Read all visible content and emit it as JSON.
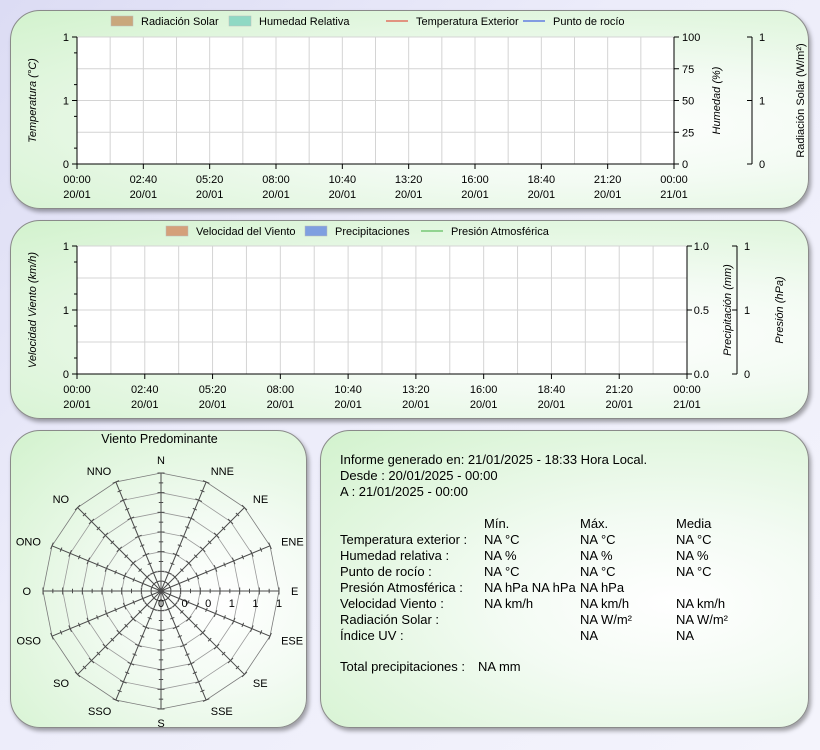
{
  "chart_data": [
    {
      "type": "line",
      "legend": [
        {
          "name": "Radiación Solar",
          "kind": "area",
          "color": "#c9a77c"
        },
        {
          "name": "Humedad Relativa",
          "kind": "area",
          "color": "#8fd9c4"
        },
        {
          "name": "Temperatura Exterior",
          "kind": "line",
          "color": "#e03020"
        },
        {
          "name": "Punto de rocío",
          "kind": "line",
          "color": "#2040e0"
        }
      ],
      "x_ticks": [
        {
          "time": "00:00",
          "date": "20/01"
        },
        {
          "time": "02:40",
          "date": "20/01"
        },
        {
          "time": "05:20",
          "date": "20/01"
        },
        {
          "time": "08:00",
          "date": "20/01"
        },
        {
          "time": "10:40",
          "date": "20/01"
        },
        {
          "time": "13:20",
          "date": "20/01"
        },
        {
          "time": "16:00",
          "date": "20/01"
        },
        {
          "time": "18:40",
          "date": "20/01"
        },
        {
          "time": "21:20",
          "date": "20/01"
        },
        {
          "time": "00:00",
          "date": "21/01"
        }
      ],
      "y_left": {
        "label": "Temperatura (°C)",
        "ticks": [
          "0",
          "1",
          "1"
        ]
      },
      "y_right": {
        "label": "Humedad (%)",
        "ticks": [
          "0",
          "25",
          "50",
          "75",
          "100"
        ]
      },
      "y_right2": {
        "label": "Radiación Solar (W/m²)",
        "ticks": [
          "0",
          "1",
          "1"
        ]
      },
      "grid": true,
      "series": []
    },
    {
      "type": "line",
      "legend": [
        {
          "name": "Velocidad del Viento",
          "kind": "area",
          "color": "#d4a07a"
        },
        {
          "name": "Precipitaciones",
          "kind": "area",
          "color": "#7f9fe0"
        },
        {
          "name": "Presión Atmosférica",
          "kind": "line",
          "color": "#40b040"
        }
      ],
      "x_ticks": [
        {
          "time": "00:00",
          "date": "20/01"
        },
        {
          "time": "02:40",
          "date": "20/01"
        },
        {
          "time": "05:20",
          "date": "20/01"
        },
        {
          "time": "08:00",
          "date": "20/01"
        },
        {
          "time": "10:40",
          "date": "20/01"
        },
        {
          "time": "13:20",
          "date": "20/01"
        },
        {
          "time": "16:00",
          "date": "20/01"
        },
        {
          "time": "18:40",
          "date": "20/01"
        },
        {
          "time": "21:20",
          "date": "20/01"
        },
        {
          "time": "00:00",
          "date": "21/01"
        }
      ],
      "y_left": {
        "label": "Velocidad Viento (km/h)",
        "ticks": [
          "0",
          "1",
          "1"
        ]
      },
      "y_right": {
        "label": "Precipitación (mm)",
        "ticks": [
          "0.0",
          "0.5",
          "1.0"
        ]
      },
      "y_right2": {
        "label": "Presión (hPa)",
        "ticks": [
          "0",
          "1",
          "1"
        ]
      },
      "grid": true,
      "series": []
    },
    {
      "type": "radar",
      "title": "Viento Predominante",
      "directions": [
        "N",
        "NNE",
        "NE",
        "ENE",
        "E",
        "ESE",
        "SE",
        "SSE",
        "S",
        "SSO",
        "SO",
        "OSO",
        "O",
        "ONO",
        "NO",
        "NNO"
      ],
      "radial_labels": [
        "0",
        "0",
        "0",
        "1",
        "1",
        "1"
      ],
      "values": []
    }
  ],
  "report": {
    "generated": "Informe generado en: 21/01/2025 - 18:33 Hora Local.",
    "from": "Desde : 20/01/2025 - 00:00",
    "to": "A : 21/01/2025 - 00:00",
    "headers": {
      "min": "Mín.",
      "max": "Máx.",
      "avg": "Media"
    },
    "rows": [
      {
        "label": "Temperatura exterior :",
        "min": "NA °C",
        "max": "NA °C",
        "avg": "NA °C"
      },
      {
        "label": "Humedad relativa :",
        "min": "NA %",
        "max": "NA %",
        "avg": "NA %"
      },
      {
        "label": "Punto de rocío :",
        "min": "NA °C",
        "max": "NA °C",
        "avg": "NA °C"
      },
      {
        "label": "Presión Atmosférica :",
        "min": "NA hPa NA hPa",
        "max": "NA hPa",
        "avg": ""
      },
      {
        "label": "Velocidad Viento :",
        "min": "NA km/h",
        "max": "NA km/h",
        "avg": "NA km/h"
      },
      {
        "label": "Radiación Solar :",
        "min": "",
        "max": "NA W/m²",
        "avg": "NA W/m²"
      },
      {
        "label": "Índice UV :",
        "min": "",
        "max": "NA",
        "avg": "NA"
      }
    ],
    "total_label": "Total precipitaciones :",
    "total_value": "NA mm"
  }
}
